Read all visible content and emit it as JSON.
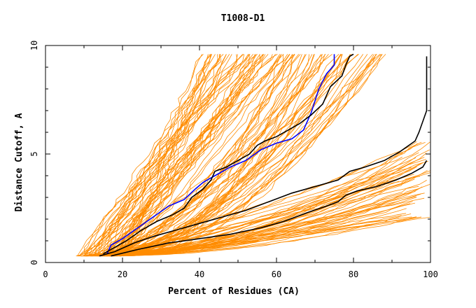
{
  "chart_data": {
    "type": "line",
    "title": "T1008-D1",
    "xlabel": "Percent of Residues (CA)",
    "ylabel": "Distance Cutoff, A",
    "xlim": [
      0,
      100
    ],
    "ylim": [
      0,
      10
    ],
    "xticks": [
      "0",
      "20",
      "40",
      "60",
      "80",
      "100"
    ],
    "yticks": [
      "0",
      "5",
      "10"
    ],
    "grid": false,
    "colors": {
      "background_series": "#ff8c00",
      "highlight_black": "#000000",
      "highlight_blue": "#0000ff",
      "axes": "#000000"
    },
    "highlight_series": [
      {
        "color": "#0000ff",
        "points": [
          [
            16,
            0.4
          ],
          [
            17,
            0.8
          ],
          [
            20,
            1.1
          ],
          [
            24,
            1.6
          ],
          [
            28,
            2.1
          ],
          [
            32,
            2.6
          ],
          [
            36,
            2.9
          ],
          [
            39,
            3.4
          ],
          [
            41,
            3.7
          ],
          [
            44,
            4.0
          ],
          [
            48,
            4.4
          ],
          [
            52,
            4.7
          ],
          [
            56,
            5.2
          ],
          [
            60,
            5.5
          ],
          [
            64,
            5.7
          ],
          [
            67,
            6.1
          ],
          [
            69,
            6.9
          ],
          [
            71,
            8.0
          ],
          [
            73,
            8.7
          ],
          [
            75,
            9.1
          ],
          [
            75,
            9.6
          ]
        ]
      },
      {
        "color": "#000000",
        "points": [
          [
            15,
            0.4
          ],
          [
            17,
            0.6
          ],
          [
            21,
            1.0
          ],
          [
            25,
            1.5
          ],
          [
            29,
            1.9
          ],
          [
            33,
            2.2
          ],
          [
            36,
            2.5
          ],
          [
            38,
            3.0
          ],
          [
            41,
            3.4
          ],
          [
            43,
            3.8
          ],
          [
            44,
            4.2
          ],
          [
            47,
            4.4
          ],
          [
            50,
            4.7
          ],
          [
            53,
            5.0
          ],
          [
            55,
            5.4
          ],
          [
            57,
            5.6
          ],
          [
            60,
            5.8
          ],
          [
            63,
            6.1
          ],
          [
            66,
            6.4
          ],
          [
            69,
            6.8
          ],
          [
            72,
            7.3
          ],
          [
            74,
            8.1
          ],
          [
            77,
            8.6
          ],
          [
            78,
            9.1
          ],
          [
            79,
            9.5
          ],
          [
            80,
            9.6
          ]
        ]
      },
      {
        "color": "#000000",
        "points": [
          [
            14,
            0.3
          ],
          [
            18,
            0.5
          ],
          [
            23,
            0.9
          ],
          [
            28,
            1.2
          ],
          [
            34,
            1.5
          ],
          [
            40,
            1.8
          ],
          [
            46,
            2.1
          ],
          [
            52,
            2.4
          ],
          [
            58,
            2.8
          ],
          [
            64,
            3.2
          ],
          [
            70,
            3.5
          ],
          [
            76,
            3.8
          ],
          [
            79,
            4.2
          ],
          [
            83,
            4.4
          ],
          [
            88,
            4.7
          ],
          [
            92,
            5.1
          ],
          [
            96,
            5.6
          ],
          [
            97,
            6.0
          ],
          [
            98,
            6.5
          ],
          [
            99,
            7.0
          ],
          [
            99,
            8.0
          ],
          [
            99,
            9.5
          ]
        ]
      },
      {
        "color": "#000000",
        "points": [
          [
            17,
            0.3
          ],
          [
            24,
            0.6
          ],
          [
            32,
            0.9
          ],
          [
            40,
            1.1
          ],
          [
            48,
            1.3
          ],
          [
            56,
            1.6
          ],
          [
            62,
            1.9
          ],
          [
            68,
            2.3
          ],
          [
            73,
            2.6
          ],
          [
            76,
            2.8
          ],
          [
            78,
            3.1
          ],
          [
            81,
            3.3
          ],
          [
            86,
            3.5
          ],
          [
            91,
            3.8
          ],
          [
            95,
            4.1
          ],
          [
            98,
            4.4
          ],
          [
            99,
            4.7
          ]
        ]
      }
    ]
  }
}
